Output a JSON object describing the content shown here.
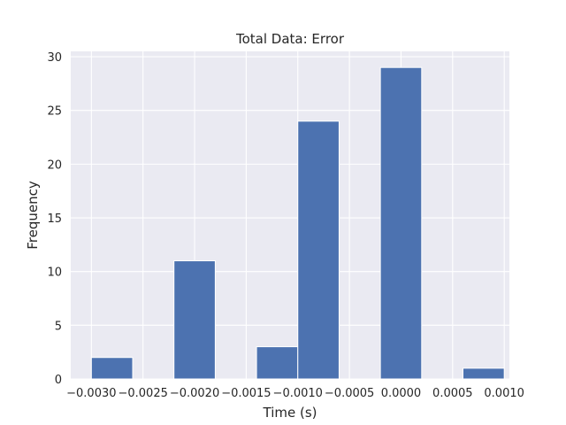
{
  "chart_data": {
    "type": "bar",
    "title": "Total Data: Error",
    "xlabel": "Time (s)",
    "ylabel": "Frequency",
    "xlim": [
      -0.0032,
      0.00105
    ],
    "ylim": [
      0,
      30.5
    ],
    "x_ticks": [
      -0.003,
      -0.0025,
      -0.002,
      -0.0015,
      -0.001,
      -0.0005,
      0.0,
      0.0005,
      0.001
    ],
    "x_tick_labels": [
      "−0.0030",
      "−0.0025",
      "−0.0020",
      "−0.0015",
      "−0.0010",
      "−0.0005",
      "0.0000",
      "0.0005",
      "0.0010"
    ],
    "y_ticks": [
      0,
      5,
      10,
      15,
      20,
      25,
      30
    ],
    "y_tick_labels": [
      "0",
      "5",
      "10",
      "15",
      "20",
      "25",
      "30"
    ],
    "bin_edges": [
      -0.003,
      -0.0026,
      -0.0022,
      -0.0018,
      -0.0014,
      -0.001,
      -0.0006,
      -0.0002,
      0.0002,
      0.0006,
      0.001
    ],
    "values": [
      2,
      0,
      11,
      0,
      3,
      24,
      0,
      29,
      0,
      1
    ],
    "grid": true,
    "colors": {
      "bar": "#4c72b0",
      "background": "#eaeaf2",
      "grid": "#ffffff"
    }
  }
}
